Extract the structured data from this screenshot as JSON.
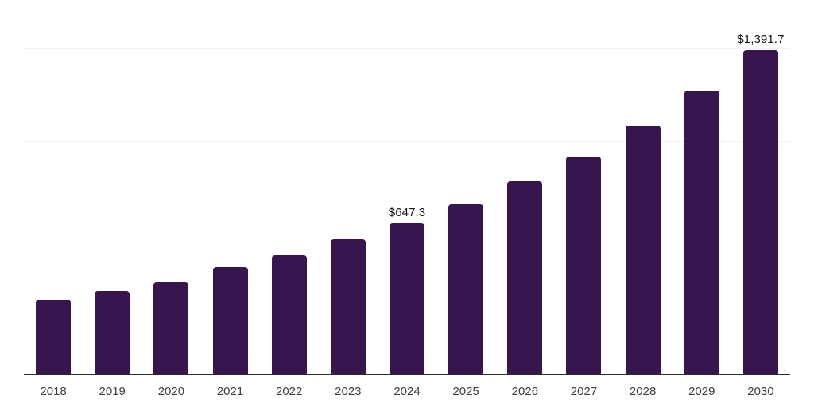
{
  "chart_data": {
    "type": "bar",
    "title": "",
    "xlabel": "",
    "ylabel": "",
    "categories": [
      "2018",
      "2019",
      "2020",
      "2021",
      "2022",
      "2023",
      "2024",
      "2025",
      "2026",
      "2027",
      "2028",
      "2029",
      "2030"
    ],
    "values": [
      316.9,
      355.6,
      393.2,
      459.2,
      510.5,
      577.8,
      647.3,
      729.3,
      826.3,
      934.4,
      1065.6,
      1216.1,
      1391.7
    ],
    "data_labels": [
      "",
      "",
      "",
      "",
      "",
      "",
      "$647.3",
      "",
      "",
      "",
      "",
      "",
      "$1,391.7"
    ],
    "labeled_points": {
      "2024": "$647.3",
      "2030": "$1,391.7"
    },
    "ylim": [
      0,
      1600
    ],
    "grid_step": 200,
    "grid": "horizontal",
    "y_axis_tick_labels_visible": false,
    "legend_position": "none"
  },
  "style": {
    "bar_color": "#371650",
    "gridline_color": "#f0f0f0",
    "axis_line_color": "#2d2d2d",
    "tick_label_color": "#3d3d3d",
    "data_label_color": "#141414",
    "background_color": "#ffffff"
  }
}
